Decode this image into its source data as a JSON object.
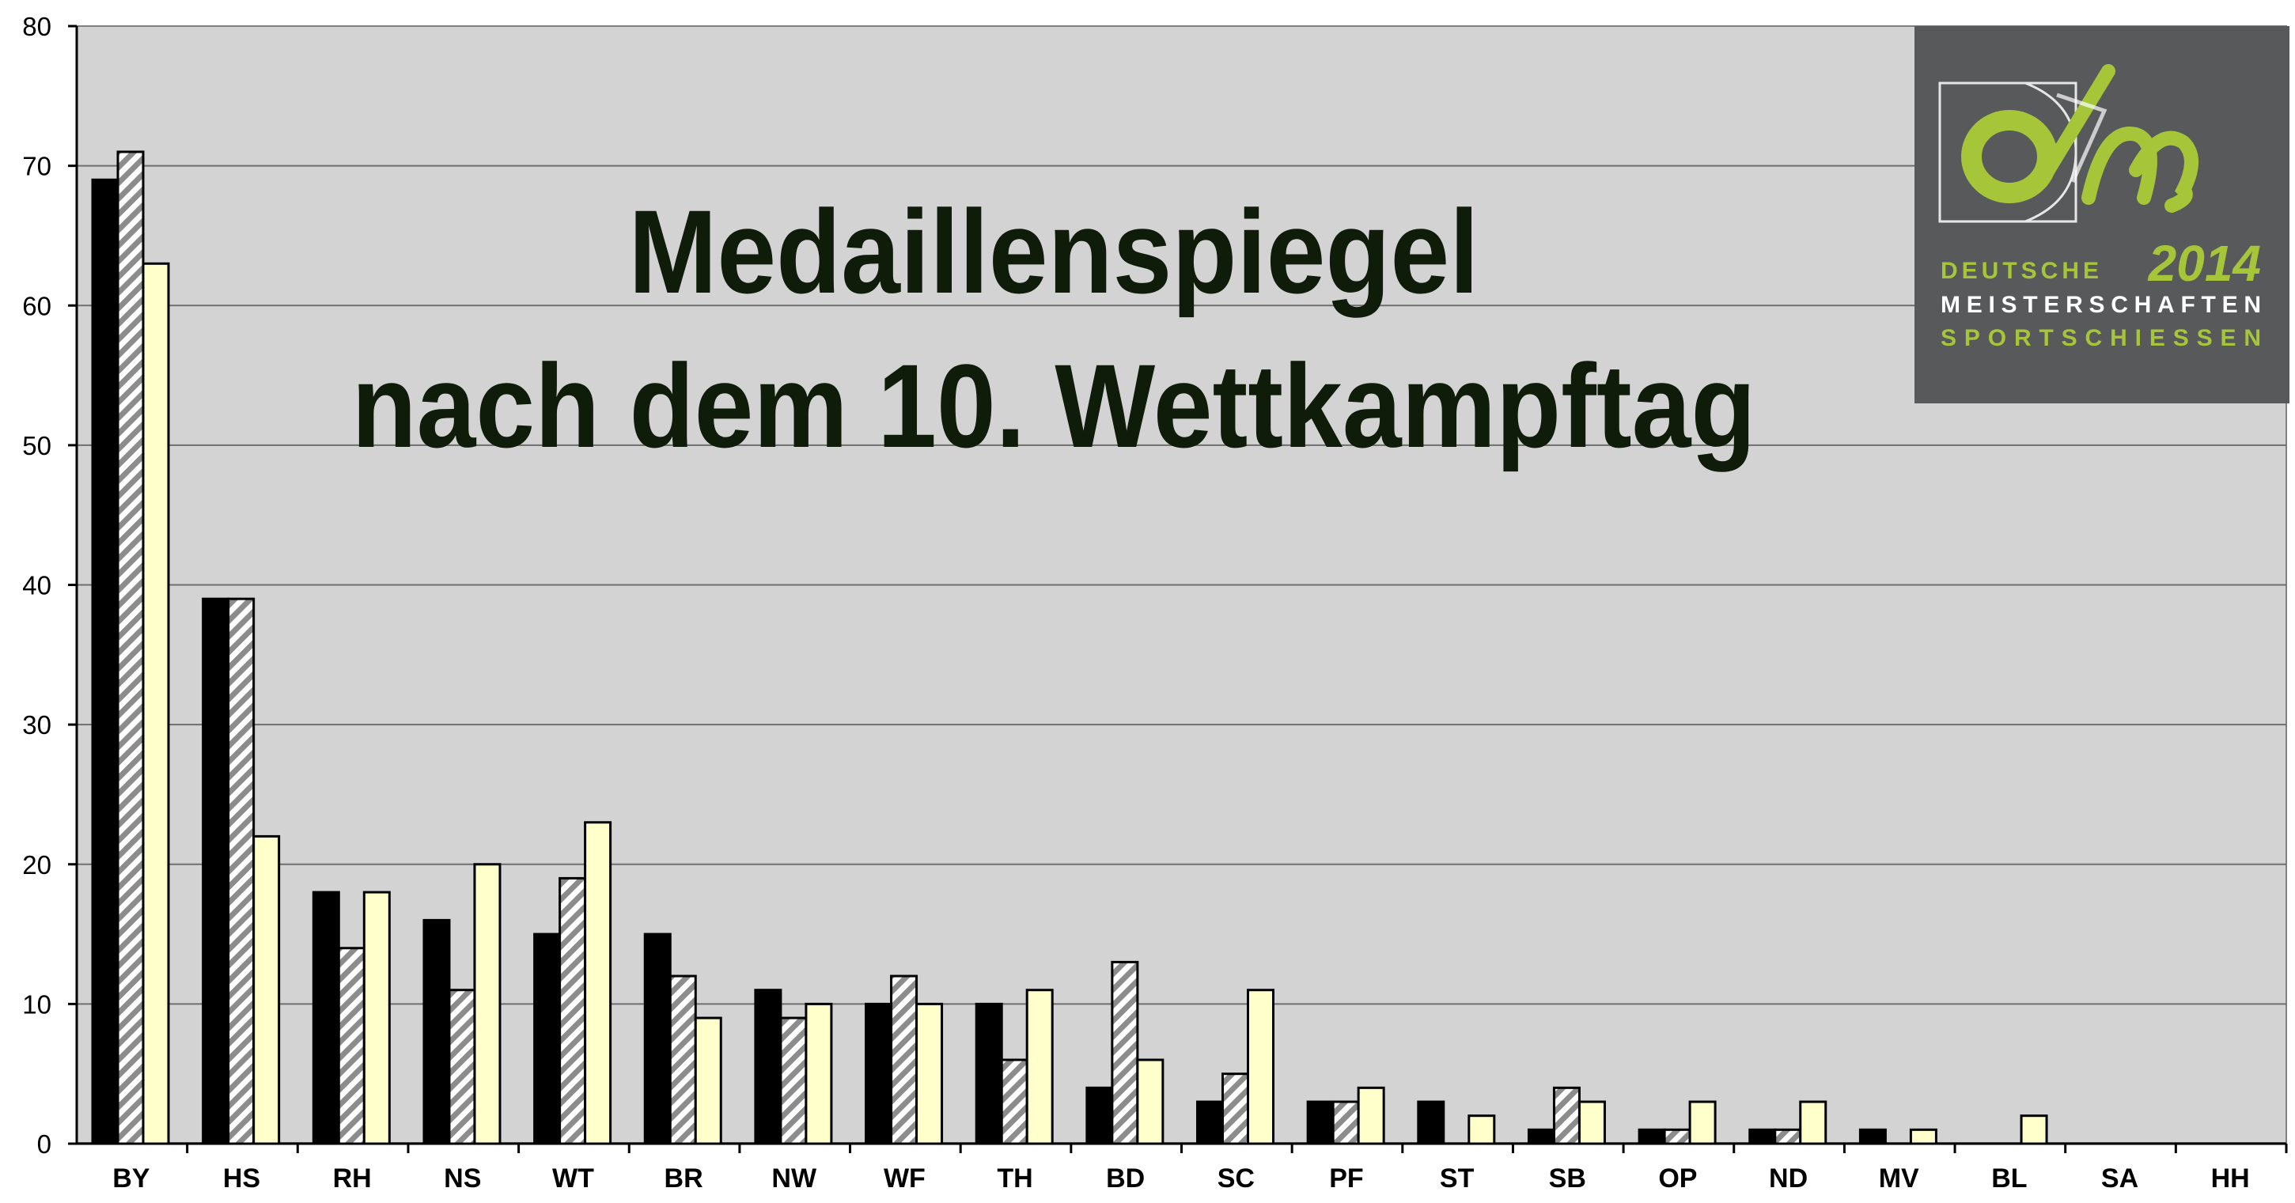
{
  "chart_data": {
    "type": "bar",
    "title_lines": [
      "Medaillenspiegel",
      "nach dem 10. Wettkampftag"
    ],
    "categories": [
      "BY",
      "HS",
      "RH",
      "NS",
      "WT",
      "BR",
      "NW",
      "WF",
      "TH",
      "BD",
      "SC",
      "PF",
      "ST",
      "SB",
      "OP",
      "ND",
      "MV",
      "BL",
      "SA",
      "HH"
    ],
    "series": [
      {
        "fill": "#000000",
        "pattern": "solid",
        "values": [
          69,
          39,
          18,
          16,
          15,
          15,
          11,
          10,
          10,
          4,
          3,
          3,
          3,
          1,
          1,
          1,
          1,
          0,
          0,
          0
        ]
      },
      {
        "fill": "#bdbdbd",
        "pattern": "diagonal-stripes",
        "values": [
          71,
          39,
          14,
          11,
          19,
          12,
          9,
          12,
          6,
          13,
          5,
          3,
          0,
          4,
          1,
          1,
          0,
          0,
          0,
          0
        ]
      },
      {
        "fill": "#ffffcc",
        "pattern": "solid",
        "values": [
          63,
          22,
          18,
          20,
          23,
          9,
          10,
          10,
          11,
          6,
          11,
          4,
          2,
          3,
          3,
          3,
          1,
          2,
          0,
          0
        ]
      }
    ],
    "ylim": [
      0,
      80
    ],
    "yticks": [
      0,
      10,
      20,
      30,
      40,
      50,
      60,
      70,
      80
    ],
    "grid": true,
    "plot_background": "#d3d3d3",
    "legend": "none"
  },
  "logo": {
    "year": "2014",
    "line1": "Deutsche",
    "line2": "Meisterschaften",
    "line3": "Sportschiessen",
    "background": "#58595b",
    "accent": "#a6c539"
  }
}
